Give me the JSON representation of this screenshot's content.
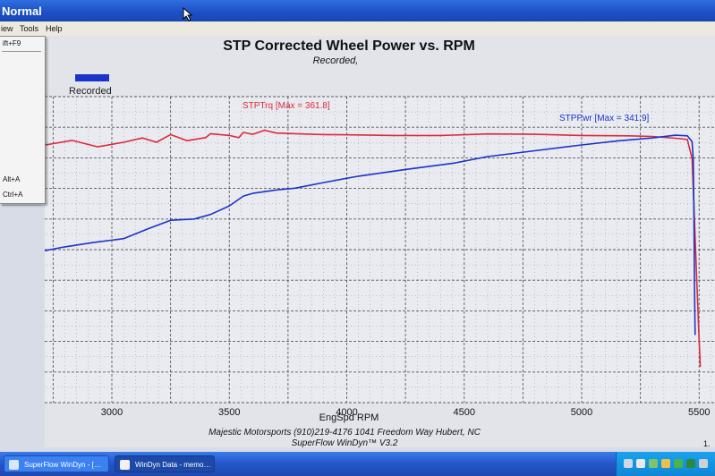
{
  "window": {
    "title": "Normal"
  },
  "menu": {
    "view": "iew",
    "tools": "Tools",
    "help": "Help"
  },
  "dropdown": {
    "item_shortcut_1": "ift+F9",
    "item_shortcut_2": "Alt+A",
    "item_shortcut_3": "Ctrl+A"
  },
  "chart_data": {
    "type": "line",
    "title": "STP Corrected Wheel Power vs. RPM",
    "subtitle": "Recorded,",
    "xlabel": "EngSpd RPM",
    "legend": {
      "label": "Recorded",
      "color": "#1b33c9",
      "placement": "top-left"
    },
    "xlim": [
      2500,
      5550
    ],
    "ylim": [
      0,
      100
    ],
    "grid": true,
    "x_ticks": [
      "3000",
      "3500",
      "4000",
      "4500",
      "5000",
      "5500"
    ],
    "x_tick_values": [
      3000,
      3500,
      4000,
      4500,
      5000,
      5500
    ],
    "series": [
      {
        "name": "STPTrq",
        "color": "#e0283a",
        "annotation": "STPTrq [Max = 361.8]",
        "points": [
          [
            2500,
            83.0
          ],
          [
            2620,
            83.1
          ],
          [
            2740,
            84.5
          ],
          [
            2830,
            85.7
          ],
          [
            2940,
            83.6
          ],
          [
            3050,
            85.1
          ],
          [
            3130,
            86.5
          ],
          [
            3190,
            85.1
          ],
          [
            3250,
            87.6
          ],
          [
            3320,
            85.6
          ],
          [
            3400,
            86.6
          ],
          [
            3420,
            87.9
          ],
          [
            3500,
            87.3
          ],
          [
            3540,
            86.6
          ],
          [
            3560,
            88.3
          ],
          [
            3600,
            87.7
          ],
          [
            3650,
            89.0
          ],
          [
            3700,
            88.1
          ],
          [
            3780,
            87.9
          ],
          [
            3900,
            87.6
          ],
          [
            4050,
            87.5
          ],
          [
            4200,
            87.3
          ],
          [
            4400,
            87.3
          ],
          [
            4600,
            87.8
          ],
          [
            4800,
            87.7
          ],
          [
            5000,
            87.3
          ],
          [
            5200,
            87.2
          ],
          [
            5300,
            87.0
          ],
          [
            5400,
            86.4
          ],
          [
            5450,
            86.0
          ],
          [
            5470,
            79.7
          ],
          [
            5480,
            60.1
          ],
          [
            5490,
            40.1
          ],
          [
            5500,
            20.2
          ],
          [
            5505,
            11.7
          ]
        ]
      },
      {
        "name": "STPPwr",
        "color": "#1b33c9",
        "annotation": "STPPwr [Max = 341.9]",
        "points": [
          [
            2500,
            45.6
          ],
          [
            2560,
            46.6
          ],
          [
            2650,
            48.7
          ],
          [
            2800,
            50.9
          ],
          [
            2920,
            52.3
          ],
          [
            3050,
            53.6
          ],
          [
            3150,
            56.7
          ],
          [
            3250,
            59.6
          ],
          [
            3350,
            60.0
          ],
          [
            3420,
            61.5
          ],
          [
            3500,
            64.3
          ],
          [
            3560,
            67.5
          ],
          [
            3600,
            68.4
          ],
          [
            3700,
            69.5
          ],
          [
            3780,
            70.1
          ],
          [
            3900,
            71.9
          ],
          [
            4050,
            74.0
          ],
          [
            4250,
            76.2
          ],
          [
            4450,
            78.2
          ],
          [
            4600,
            80.4
          ],
          [
            4800,
            82.3
          ],
          [
            5000,
            84.2
          ],
          [
            5150,
            85.5
          ],
          [
            5300,
            86.5
          ],
          [
            5400,
            87.4
          ],
          [
            5450,
            87.2
          ],
          [
            5470,
            85.3
          ],
          [
            5475,
            79.7
          ],
          [
            5478,
            60.1
          ],
          [
            5480,
            40.1
          ],
          [
            5483,
            22.1
          ]
        ]
      }
    ]
  },
  "footer": {
    "line1": "Majestic Motorsports  (910)219-4176  1041 Freedom Way  Hubert, NC",
    "line2": "SuperFlow WinDyn™ V3.2",
    "corner": "1."
  },
  "taskbar": {
    "task1": "SuperFlow WinDyn - […",
    "task2": "WinDyn Data - memo…"
  },
  "colors": {
    "title_bar": "#1c4fc4",
    "taskbar": "#2456c9",
    "grid": "#2b2b2b",
    "plot_bg": "#e9ebf0"
  }
}
